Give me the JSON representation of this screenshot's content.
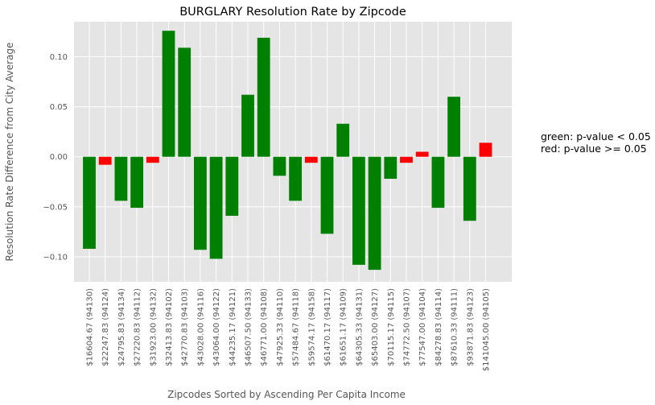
{
  "chart_data": {
    "type": "bar",
    "title": "BURGLARY Resolution Rate by Zipcode",
    "xlabel": "Zipcodes Sorted by Ascending Per Capita Income",
    "ylabel": "Resolution Rate Difference from City Average",
    "ylim": [
      -0.125,
      0.135
    ],
    "yticks": [
      -0.1,
      -0.05,
      0.0,
      0.05,
      0.1
    ],
    "ytick_labels": [
      "−0.10",
      "−0.05",
      "0.00",
      "0.05",
      "0.10"
    ],
    "grid": true,
    "categories": [
      "$16604.67 (94130)",
      "$22247.83 (94124)",
      "$24795.83 (94134)",
      "$27220.83 (94112)",
      "$31923.00 (94132)",
      "$32413.83 (94102)",
      "$42770.83 (94103)",
      "$43028.00 (94116)",
      "$43064.00 (94122)",
      "$44235.17 (94121)",
      "$46507.50 (94133)",
      "$46771.00 (94108)",
      "$47925.33 (94110)",
      "$57484.67 (94118)",
      "$59574.17 (94158)",
      "$61470.17 (94117)",
      "$61651.17 (94109)",
      "$64305.33 (94131)",
      "$65403.00 (94127)",
      "$70115.17 (94115)",
      "$74772.50 (94107)",
      "$77547.00 (94104)",
      "$84278.83 (94114)",
      "$87610.33 (94111)",
      "$93871.83 (94123)",
      "$141045.00 (94105)"
    ],
    "values": [
      -0.092,
      -0.008,
      -0.044,
      -0.051,
      -0.006,
      0.126,
      0.109,
      -0.093,
      -0.102,
      -0.059,
      0.062,
      0.119,
      -0.019,
      -0.044,
      -0.006,
      -0.077,
      0.033,
      -0.108,
      -0.113,
      -0.022,
      -0.006,
      0.005,
      -0.051,
      0.06,
      -0.064,
      0.014
    ],
    "significant": [
      true,
      false,
      true,
      true,
      false,
      true,
      true,
      true,
      true,
      true,
      true,
      true,
      true,
      true,
      false,
      true,
      true,
      true,
      true,
      true,
      false,
      false,
      true,
      true,
      true,
      false
    ],
    "colors": {
      "significant": "#008000",
      "not_significant": "#ff0000",
      "plot_bg": "#e5e5e5",
      "grid": "#ffffff"
    }
  },
  "legend_note": {
    "line1": "green: p-value < 0.05",
    "line2": "red: p-value >= 0.05"
  }
}
